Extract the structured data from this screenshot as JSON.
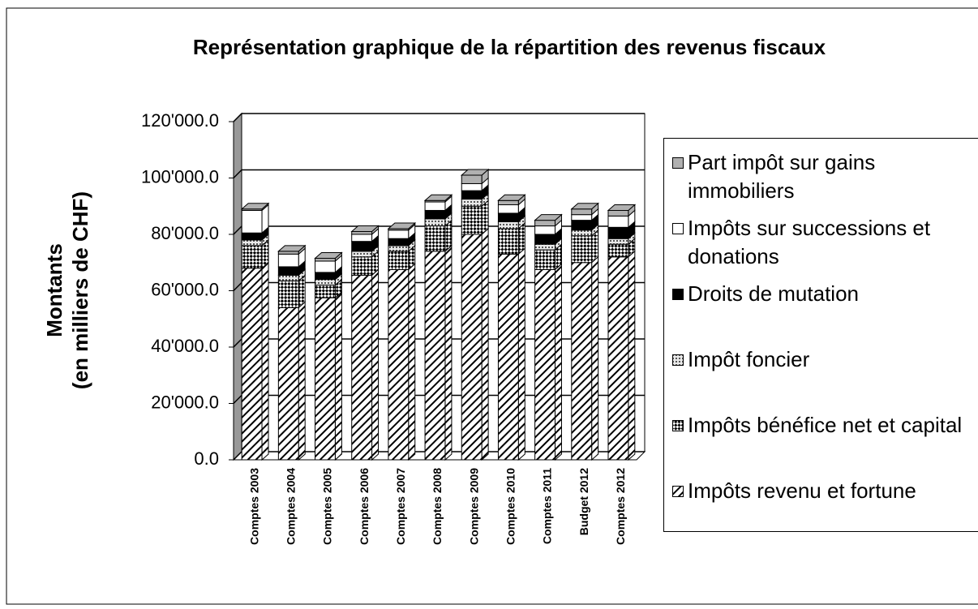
{
  "chart_data": {
    "type": "bar3d_stacked",
    "title": "Représentation graphique de la répartition des revenus fiscaux",
    "ylabel": [
      "Montants",
      "(en milliers de CHF)"
    ],
    "categories": [
      "Comptes 2003",
      "Comptes 2004",
      "Comptes 2005",
      "Comptes 2006",
      "Comptes 2007",
      "Comptes 2008",
      "Comptes 2009",
      "Comptes 2010",
      "Comptes 2011",
      "Budget 2012",
      "Comptes 2012"
    ],
    "series": [
      {
        "name": "Impôts revenu et fortune",
        "color": "#ffffff",
        "pattern": "diagonal",
        "values": [
          68000,
          54000,
          57500,
          65500,
          67500,
          74000,
          80000,
          73000,
          67500,
          70000,
          72000
        ]
      },
      {
        "name": "Impôts bénéfice net et capital",
        "color": "#000000",
        "pattern": "checker",
        "values": [
          8000,
          9500,
          4500,
          6500,
          6500,
          9000,
          10000,
          9000,
          7000,
          9500,
          4500
        ]
      },
      {
        "name": "Impôt foncier",
        "color": "#c8c8c8",
        "pattern": "dots",
        "values": [
          2000,
          2000,
          2000,
          2000,
          2000,
          2500,
          2500,
          2500,
          2000,
          2000,
          2000
        ]
      },
      {
        "name": "Droits de mutation",
        "color": "#000000",
        "pattern": "solid",
        "values": [
          2500,
          3000,
          2500,
          3500,
          2500,
          3000,
          3000,
          3000,
          3500,
          3500,
          4000
        ]
      },
      {
        "name": "Impôts sur successions et donations",
        "color": "#ffffff",
        "pattern": "solid",
        "values": [
          8000,
          4500,
          4000,
          2500,
          3000,
          3000,
          2500,
          3000,
          3000,
          2000,
          4000
        ]
      },
      {
        "name": "Part impôt sur gains immobiliers",
        "color": "#b0b0b0",
        "pattern": "solid",
        "values": [
          500,
          1000,
          1000,
          1000,
          500,
          500,
          3000,
          1500,
          2000,
          2000,
          2000
        ]
      }
    ],
    "ylim": [
      0,
      120000
    ],
    "yticks": [
      {
        "value": 0,
        "label": "0.0"
      },
      {
        "value": 20000,
        "label": "20'000.0"
      },
      {
        "value": 40000,
        "label": "40'000.0"
      },
      {
        "value": 60000,
        "label": "60'000.0"
      },
      {
        "value": 80000,
        "label": "80'000.0"
      },
      {
        "value": 100000,
        "label": "100'000.0"
      },
      {
        "value": 120000,
        "label": "120'000.0"
      }
    ],
    "grid": true,
    "legend": "right"
  }
}
